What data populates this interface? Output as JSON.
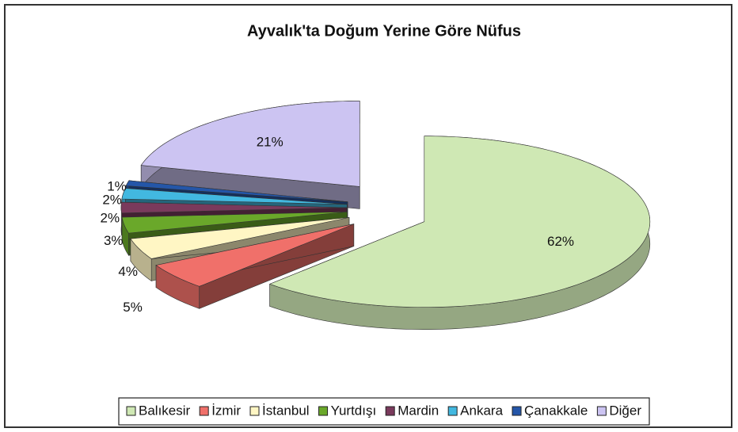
{
  "chart_data": {
    "type": "pie3d",
    "title": "Ayvalık'ta Doğum Yerine Göre Nüfus",
    "categories": [
      "Balıkesir",
      "İzmir",
      "İstanbul",
      "Yurtdışı",
      "Mardin",
      "Ankara",
      "Çanakkale",
      "Diğer"
    ],
    "values": [
      62,
      5,
      4,
      3,
      2,
      2,
      1,
      21
    ],
    "value_labels": [
      "62%",
      "5%",
      "4%",
      "3%",
      "2%",
      "2%",
      "1%",
      "21%"
    ],
    "colors": [
      "#cfe8b4",
      "#f0706a",
      "#fff6c4",
      "#6aa82a",
      "#7a3a5c",
      "#42b8e0",
      "#2456a8",
      "#ccc4f2"
    ],
    "legend": "bottom"
  }
}
